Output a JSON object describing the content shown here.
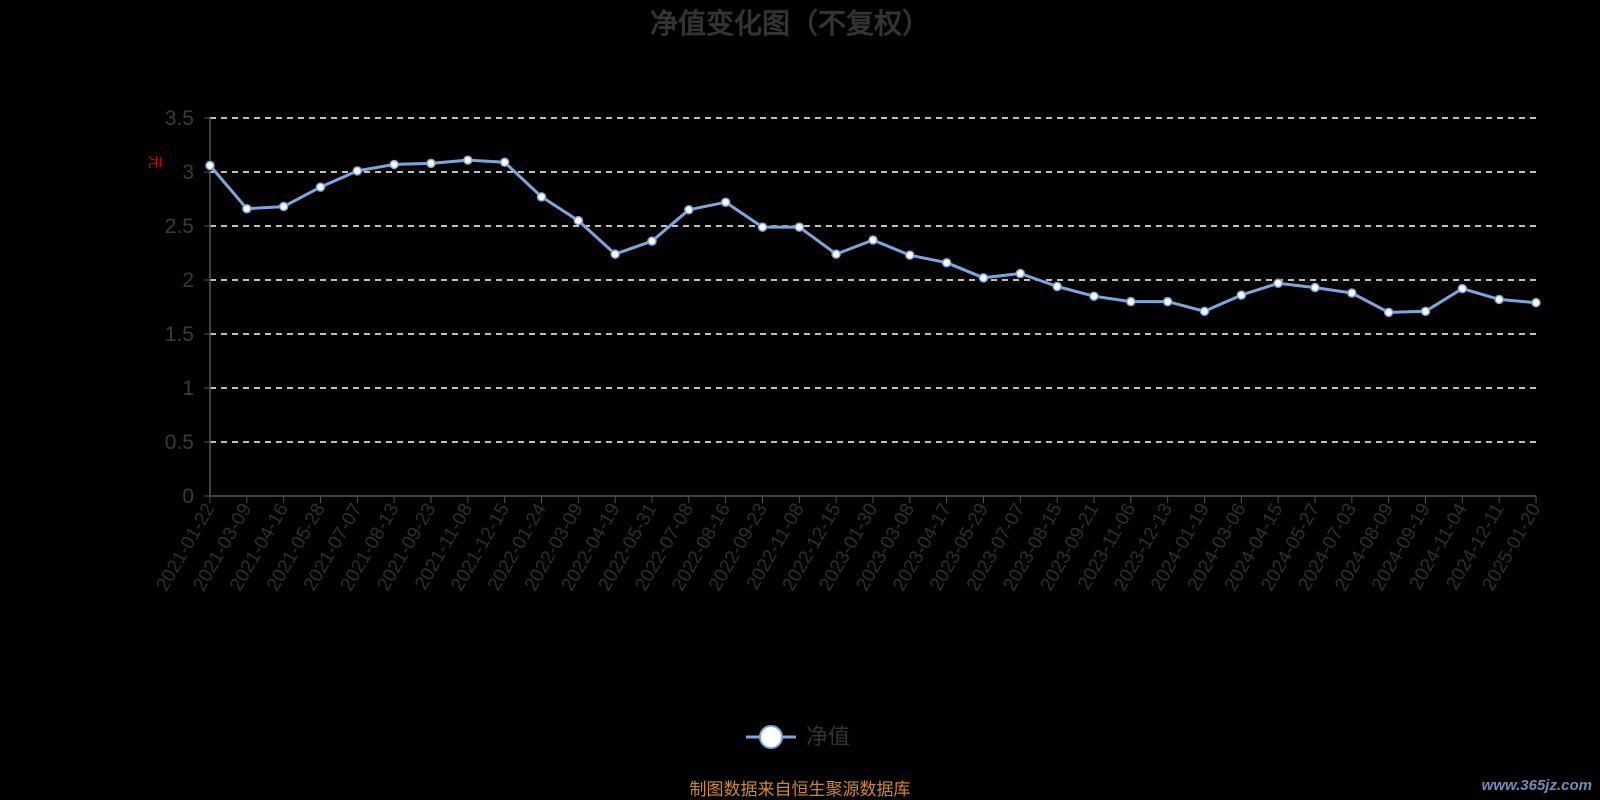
{
  "chart_data": {
    "type": "line",
    "title": "净值变化图（不复权）",
    "ylabel": "元",
    "ylim": [
      0,
      3.5
    ],
    "yticks": [
      "0",
      "0.5",
      "1",
      "1.5",
      "2",
      "2.5",
      "3",
      "3.5"
    ],
    "grid": true,
    "legend_position": "bottom",
    "x": [
      "2021-01-22",
      "2021-03-09",
      "2021-04-16",
      "2021-05-28",
      "2021-07-07",
      "2021-08-13",
      "2021-09-23",
      "2021-11-08",
      "2021-12-15",
      "2022-01-24",
      "2022-03-09",
      "2022-04-19",
      "2022-05-31",
      "2022-07-08",
      "2022-08-16",
      "2022-09-23",
      "2022-11-08",
      "2022-12-15",
      "2023-01-30",
      "2023-03-08",
      "2023-04-17",
      "2023-05-29",
      "2023-07-07",
      "2023-08-15",
      "2023-09-21",
      "2023-11-06",
      "2023-12-13",
      "2024-01-19",
      "2024-03-06",
      "2024-04-15",
      "2024-05-27",
      "2024-07-03",
      "2024-08-09",
      "2024-09-19",
      "2024-11-04",
      "2024-12-11",
      "2025-01-20"
    ],
    "series": [
      {
        "name": "净值",
        "color": "#7ea6dc",
        "values": [
          3.06,
          2.66,
          2.68,
          2.86,
          3.01,
          3.07,
          3.08,
          3.11,
          3.09,
          2.77,
          2.55,
          2.24,
          2.36,
          2.65,
          2.72,
          2.49,
          2.49,
          2.24,
          2.37,
          2.23,
          2.16,
          2.02,
          2.06,
          1.94,
          1.85,
          1.8,
          1.8,
          1.71,
          1.86,
          1.97,
          1.93,
          1.88,
          1.7,
          1.71,
          1.92,
          1.82,
          1.79
        ]
      }
    ]
  },
  "legend": {
    "label": "净值"
  },
  "footer": {
    "source": "制图数据来自恒生聚源数据库",
    "watermark": "www.365jz.com"
  }
}
